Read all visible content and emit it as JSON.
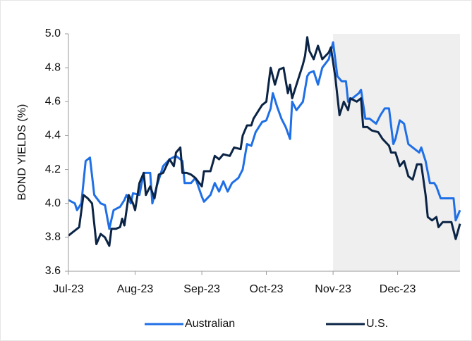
{
  "chart_data": {
    "type": "line",
    "ylabel": "BOND YIELDS (%)",
    "xlim": [
      0,
      182
    ],
    "xticks": [
      {
        "value": 0,
        "label": "Jul-23"
      },
      {
        "value": 31,
        "label": "Aug-23"
      },
      {
        "value": 62,
        "label": "Sep-23"
      },
      {
        "value": 92,
        "label": "Oct-23"
      },
      {
        "value": 123,
        "label": "Nov-23"
      },
      {
        "value": 153,
        "label": "Dec-23"
      }
    ],
    "ylim": [
      3.6,
      5.0
    ],
    "yticks": [
      3.6,
      3.8,
      {
        "value": 4,
        "label": "4.0"
      },
      4.2,
      4.4,
      4.6,
      4.8,
      {
        "value": 5,
        "label": "5.0"
      }
    ],
    "shade_from": 123,
    "shade_color": "#efefef",
    "legend": "bottom",
    "series": [
      {
        "name": "Australian",
        "color": "#1f6fe6",
        "x": [
          0,
          3,
          4,
          6,
          8,
          10,
          12,
          15,
          17,
          19,
          21,
          24,
          26,
          27,
          29,
          30,
          33,
          35,
          38,
          39,
          41,
          44,
          47,
          50,
          53,
          54,
          57,
          59,
          62,
          63,
          66,
          68,
          70,
          72,
          74,
          76,
          79,
          81,
          83,
          85,
          87,
          90,
          92,
          94,
          95,
          97,
          99,
          101,
          103,
          104,
          106,
          109,
          111,
          112,
          114,
          116,
          118,
          121,
          123,
          125,
          127,
          129,
          130,
          133,
          135,
          136,
          138,
          140,
          143,
          145,
          147,
          149,
          151,
          152,
          154,
          156,
          158,
          160,
          163,
          164,
          166,
          168,
          170,
          171,
          173,
          177,
          179,
          180,
          182
        ],
        "values": [
          4.02,
          4.0,
          3.96,
          4.0,
          4.25,
          4.27,
          4.05,
          4.0,
          3.99,
          3.85,
          3.96,
          3.98,
          4.02,
          4.05,
          4.0,
          4.06,
          4.05,
          4.18,
          4.18,
          4.0,
          4.1,
          4.22,
          4.26,
          4.28,
          4.25,
          4.12,
          4.12,
          4.15,
          4.04,
          4.01,
          4.05,
          4.12,
          4.07,
          4.13,
          4.07,
          4.12,
          4.15,
          4.2,
          4.35,
          4.34,
          4.42,
          4.48,
          4.49,
          4.56,
          4.65,
          4.57,
          4.5,
          4.45,
          4.38,
          4.6,
          4.55,
          4.6,
          4.75,
          4.77,
          4.78,
          4.7,
          4.8,
          4.85,
          4.95,
          4.75,
          4.72,
          4.72,
          4.6,
          4.63,
          4.65,
          4.67,
          4.5,
          4.5,
          4.47,
          4.52,
          4.56,
          4.56,
          4.35,
          4.38,
          4.49,
          4.47,
          4.35,
          4.33,
          4.3,
          4.33,
          4.25,
          4.12,
          4.12,
          4.1,
          4.03,
          4.03,
          4.03,
          3.9,
          3.96
        ]
      },
      {
        "name": "U.S.",
        "color": "#0b2445",
        "x": [
          0,
          2,
          4,
          5,
          7,
          9,
          11,
          12,
          13,
          15,
          17,
          19,
          20,
          22,
          24,
          25,
          26,
          28,
          30,
          31,
          33,
          35,
          36,
          38,
          40,
          42,
          44,
          47,
          49,
          50,
          52,
          53,
          55,
          57,
          59,
          62,
          63,
          66,
          68,
          70,
          72,
          75,
          77,
          80,
          81,
          83,
          85,
          86,
          88,
          90,
          92,
          94,
          96,
          98,
          100,
          102,
          103,
          104,
          106,
          109,
          110,
          111,
          112,
          114,
          116,
          118,
          121,
          122,
          124,
          126,
          128,
          130,
          131,
          134,
          136,
          137,
          139,
          141,
          144,
          146,
          149,
          150,
          152,
          154,
          156,
          158,
          160,
          162,
          164,
          166,
          167,
          169,
          171,
          172,
          174,
          178,
          180,
          182
        ],
        "values": [
          3.81,
          3.83,
          3.85,
          3.86,
          4.05,
          4.03,
          4.0,
          3.88,
          3.76,
          3.82,
          3.8,
          3.75,
          3.85,
          3.85,
          3.86,
          3.91,
          3.87,
          4.05,
          4.0,
          3.96,
          4.12,
          4.18,
          4.05,
          4.1,
          4.03,
          4.17,
          4.18,
          4.26,
          4.22,
          4.3,
          4.33,
          4.18,
          4.18,
          4.17,
          4.15,
          4.1,
          4.19,
          4.19,
          4.28,
          4.26,
          4.29,
          4.28,
          4.33,
          4.32,
          4.4,
          4.46,
          4.46,
          4.5,
          4.54,
          4.58,
          4.6,
          4.8,
          4.7,
          4.79,
          4.8,
          4.65,
          4.7,
          4.62,
          4.7,
          4.82,
          4.87,
          4.98,
          4.9,
          4.85,
          4.93,
          4.85,
          4.89,
          4.92,
          4.75,
          4.52,
          4.6,
          4.55,
          4.62,
          4.6,
          4.62,
          4.45,
          4.45,
          4.43,
          4.42,
          4.38,
          4.34,
          4.3,
          4.3,
          4.22,
          4.25,
          4.16,
          4.14,
          4.23,
          4.23,
          4.05,
          3.92,
          3.9,
          3.92,
          3.86,
          3.89,
          3.89,
          3.79,
          3.88
        ]
      }
    ]
  }
}
